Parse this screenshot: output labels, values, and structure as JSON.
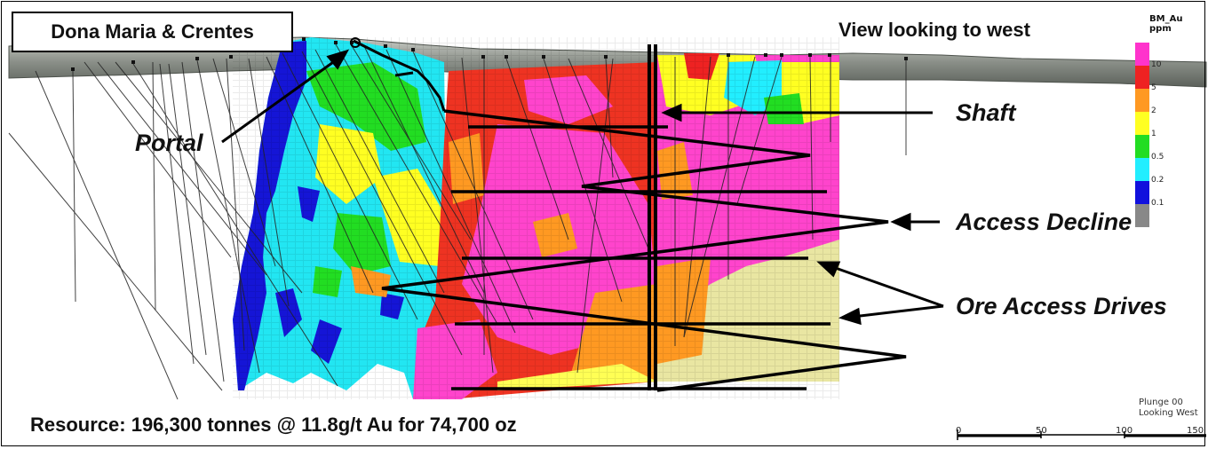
{
  "header": {
    "title": "Dona Maria & Crentes",
    "view_label": "View looking to west"
  },
  "callouts": {
    "portal": "Portal",
    "shaft": "Shaft",
    "access_decline": "Access Decline",
    "ore_access_drives": "Ore Access Drives"
  },
  "footer": {
    "resource": "Resource:  196,300 tonnes @ 11.8g/t Au for 74,700 oz"
  },
  "legend": {
    "title": "BM_Au ppm",
    "entries": [
      {
        "label": "10",
        "color": "#ff33cc"
      },
      {
        "label": "5",
        "color": "#ee2222"
      },
      {
        "label": "2",
        "color": "#ff9922"
      },
      {
        "label": "1",
        "color": "#ffff22"
      },
      {
        "label": "0.5",
        "color": "#22dd22"
      },
      {
        "label": "0.2",
        "color": "#22eeff"
      },
      {
        "label": "0.1",
        "color": "#1111dd"
      },
      {
        "label": "",
        "color": "#888888"
      }
    ]
  },
  "view_info": {
    "plunge": "Plunge 00",
    "looking": "Looking West"
  },
  "scale_bar": {
    "ticks": [
      "0",
      "50",
      "100",
      "150"
    ]
  }
}
